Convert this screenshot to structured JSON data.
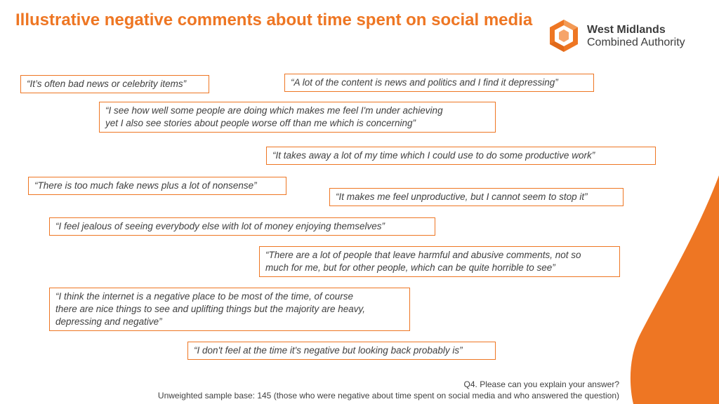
{
  "title": "Illustrative negative comments about time spent on social media",
  "logo": {
    "line1": "West Midlands",
    "line2": "Combined Authority"
  },
  "colors": {
    "accent": "#EE7623",
    "text": "#404040"
  },
  "quotes": [
    {
      "line1": "“It’s often bad news or celebrity items”"
    },
    {
      "line1": "“A lot of the content is news and politics and I find it depressing”"
    },
    {
      "line1": "“I see how well some people are doing which makes me feel I'm under achieving",
      "line2": "yet I also see stories about people worse off than me which is concerning”"
    },
    {
      "line1": "“It takes away a lot of my time which I could use to do some productive work”"
    },
    {
      "line1": "“There is too much fake news plus a lot of nonsense”"
    },
    {
      "line1": "“It makes me feel unproductive, but I cannot seem to stop it”"
    },
    {
      "line1": "“I feel jealous of seeing everybody else with lot of money enjoying themselves”"
    },
    {
      "line1": "“There are a lot of people that leave harmful and abusive comments, not so",
      "line2": "much for me, but for other people, which can be quite horrible to see”"
    },
    {
      "line1": "“I think the internet is a negative place to be most of the time, of course",
      "line2": "there are nice things to see and uplifting things but the majority are heavy,",
      "line3": "depressing and negative”"
    },
    {
      "line1": "“I don't feel at the time it's negative but looking back probably is”"
    }
  ],
  "footer": {
    "question": "Q4. Please can you explain your answer?",
    "base": "Unweighted sample base: 145 (those who were negative about time spent on social media and who answered the question)"
  }
}
